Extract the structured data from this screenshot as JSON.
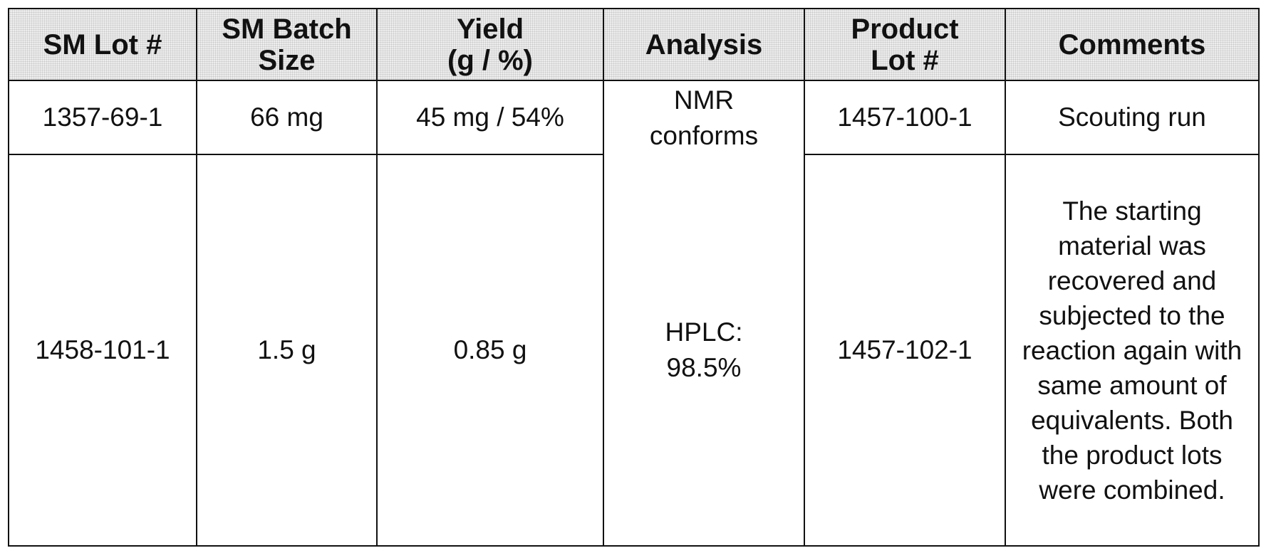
{
  "table": {
    "headers": [
      {
        "line1": "SM Lot #",
        "line2": ""
      },
      {
        "line1": "SM Batch",
        "line2": "Size"
      },
      {
        "line1": "Yield",
        "line2": "(g / %)"
      },
      {
        "line1": "Analysis",
        "line2": ""
      },
      {
        "line1": "Product",
        "line2": "Lot #"
      },
      {
        "line1": "Comments",
        "line2": ""
      }
    ],
    "rows": [
      {
        "sm_lot": "1357-69-1",
        "batch_size": "66 mg",
        "yield": "45 mg / 54%",
        "analysis_line1": "NMR",
        "analysis_line2": "conforms",
        "product_lot": "1457-100-1",
        "comments": "Scouting run"
      },
      {
        "sm_lot": "1458-101-1",
        "batch_size": "1.5 g",
        "yield": "0.85 g",
        "analysis_line1": "HPLC:",
        "analysis_line2": "98.5%",
        "product_lot": "1457-102-1",
        "comments": "The starting material was recovered and subjected to the reaction again with same amount of equivalents. Both the product lots were combined."
      }
    ]
  }
}
